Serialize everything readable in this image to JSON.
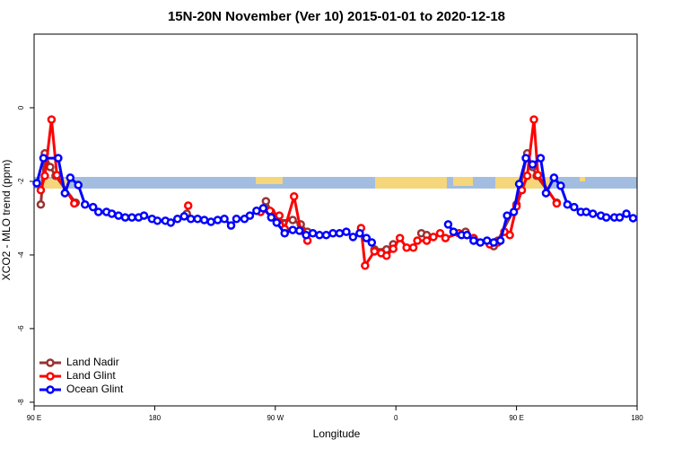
{
  "chart_data": {
    "type": "line",
    "title": "15N-20N November (Ver 10)   2015-01-01 to 2020-12-18",
    "xlabel": "Longitude",
    "ylabel": "XCO2 - MLO trend (ppm)",
    "xlim": [
      90,
      540
    ],
    "ylim": [
      -8.1,
      2
    ],
    "xticks": [
      {
        "value": 90,
        "label": "90 E"
      },
      180,
      {
        "value": 270,
        "label": "90 W"
      },
      {
        "value": 360,
        "label": "0"
      },
      {
        "value": 450,
        "label": "90 E"
      },
      {
        "value": 540,
        "label": "180"
      }
    ],
    "yticks": [
      0,
      -2,
      -4,
      -6,
      -8
    ],
    "legend": "bottomleft",
    "series": [
      {
        "name": "Land Nadir",
        "color": "#993333",
        "x": [
          95,
          98,
          102,
          106,
          121,
          160,
          204,
          230,
          263,
          267,
          272,
          283,
          289,
          294,
          320,
          344,
          353,
          358,
          370,
          379,
          383,
          400,
          412,
          420,
          433,
          436,
          450,
          458,
          462,
          465,
          480
        ],
        "values": [
          -2.63,
          -1.24,
          -1.61,
          -1.85,
          -2.58,
          null,
          -2.88,
          null,
          -2.54,
          -2.83,
          -3.07,
          -3.05,
          -3.17,
          -3.37,
          null,
          -3.85,
          -3.85,
          -3.71,
          null,
          -3.41,
          -3.46,
          null,
          -3.37,
          null,
          -3.76,
          -3.61,
          -2.63,
          -1.24,
          -1.61,
          -1.85,
          -2.58
        ]
      },
      {
        "name": "Land Glint",
        "color": "#ff0000",
        "x": [
          95,
          98,
          103,
          107,
          120,
          160,
          205,
          230,
          259,
          266,
          273,
          277,
          284,
          289,
          294,
          315,
          334,
          337,
          344,
          349,
          353,
          358,
          363,
          368,
          373,
          376,
          383,
          388,
          393,
          397,
          407,
          413,
          418,
          430,
          436,
          441,
          445,
          450,
          454,
          458,
          463,
          466,
          480
        ],
        "values": [
          -2.24,
          -1.85,
          -0.32,
          -1.83,
          -2.6,
          null,
          -2.66,
          null,
          -2.83,
          -2.8,
          -2.93,
          -3.29,
          -2.41,
          -3.34,
          -3.61,
          null,
          -3.27,
          -4.29,
          -3.9,
          -3.95,
          -4.02,
          -3.83,
          -3.54,
          -3.8,
          -3.8,
          -3.61,
          -3.61,
          -3.51,
          -3.41,
          -3.54,
          -3.41,
          -3.46,
          -3.54,
          -3.71,
          -3.66,
          -3.37,
          -3.46,
          -2.68,
          -2.24,
          -1.85,
          -0.32,
          -1.83,
          -2.6
        ]
      },
      {
        "name": "Ocean Glint",
        "color": "#0000ff",
        "x": [
          92,
          97,
          108,
          113,
          117,
          123,
          128,
          134,
          138,
          144,
          148,
          153,
          158,
          163,
          168,
          172,
          178,
          182,
          188,
          192,
          197,
          202,
          207,
          212,
          217,
          222,
          227,
          232,
          237,
          241,
          247,
          251,
          256,
          261,
          267,
          271,
          277,
          283,
          288,
          293,
          298,
          303,
          308,
          313,
          318,
          323,
          328,
          333,
          338,
          342,
          370,
          399,
          403,
          409,
          413,
          418,
          423,
          428,
          433,
          438,
          443,
          448,
          452,
          457,
          462,
          468,
          472,
          478,
          483,
          488,
          493,
          498,
          502,
          507,
          513,
          517,
          523,
          527,
          532,
          537
        ],
        "values": [
          -2.05,
          -1.37,
          -1.37,
          -2.32,
          -1.9,
          -2.1,
          -2.63,
          -2.7,
          -2.83,
          -2.83,
          -2.88,
          -2.93,
          -2.98,
          -2.98,
          -2.98,
          -2.93,
          -3.02,
          -3.07,
          -3.07,
          -3.12,
          -3.02,
          -2.95,
          -3.02,
          -3.02,
          -3.05,
          -3.1,
          -3.05,
          -3.02,
          -3.2,
          -3.02,
          -3.02,
          -2.93,
          -2.8,
          -2.73,
          -2.98,
          -3.12,
          -3.41,
          -3.32,
          -3.34,
          -3.46,
          -3.41,
          -3.46,
          -3.46,
          -3.41,
          -3.41,
          -3.37,
          -3.51,
          -3.41,
          -3.54,
          -3.66,
          null,
          -3.17,
          -3.37,
          -3.46,
          -3.46,
          -3.61,
          -3.66,
          -3.61,
          -3.66,
          -3.61,
          -2.93,
          -2.83,
          -2.07,
          -1.37,
          -1.54,
          -1.37,
          -2.32,
          -1.9,
          -2.12,
          -2.63,
          -2.7,
          -2.83,
          -2.83,
          -2.88,
          -2.93,
          -2.98,
          -2.98,
          -2.98,
          -2.88,
          -3.0
        ]
      }
    ]
  }
}
